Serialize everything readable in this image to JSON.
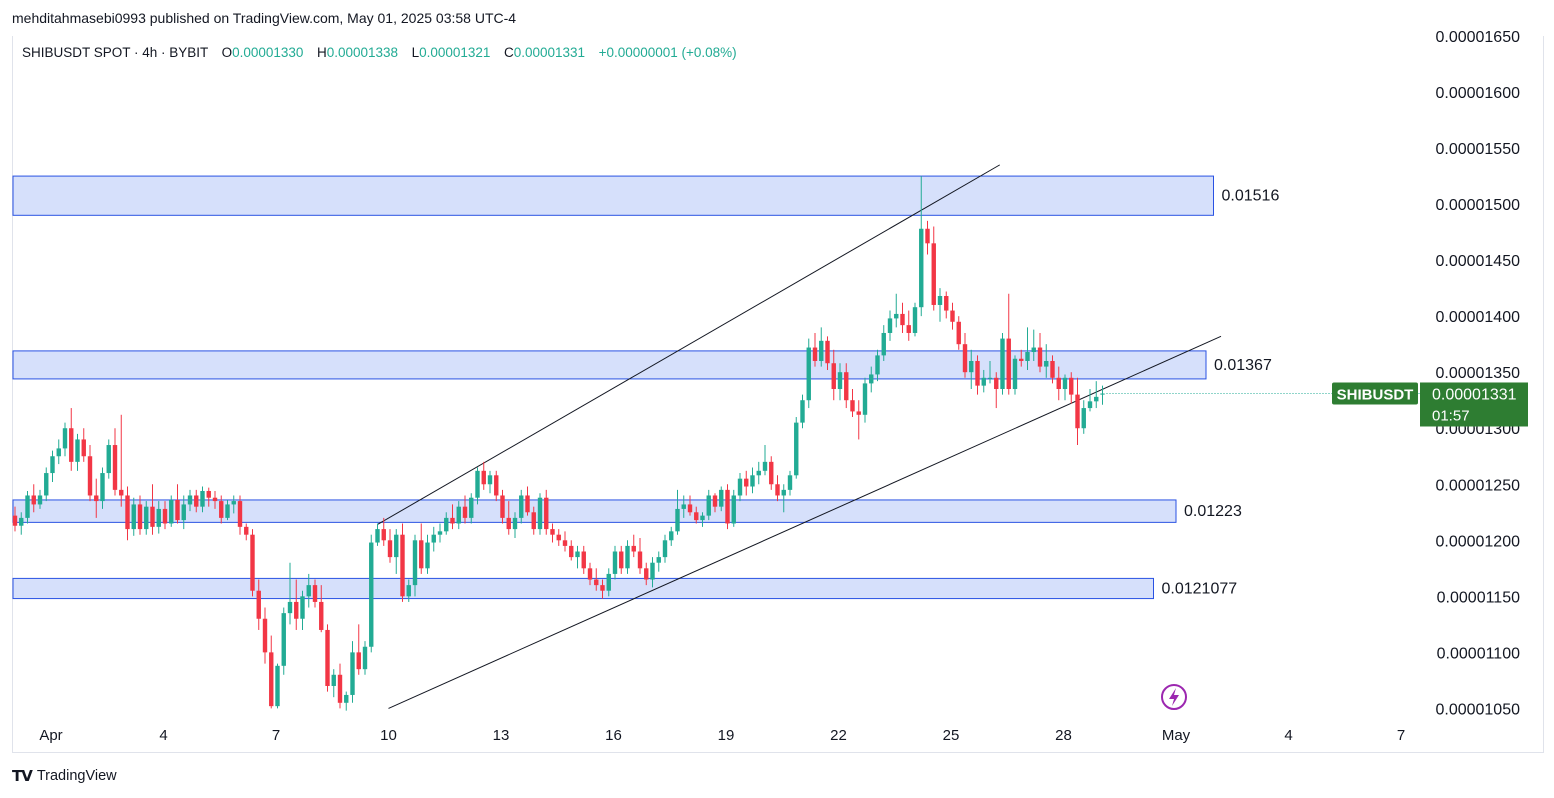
{
  "header": {
    "publisher_line": "mehditahmasebi0993 published on TradingView.com, May 01, 2025 03:58 UTC-4"
  },
  "legend": {
    "symbol": "SHIBUSDT SPOT · 4h · BYBIT",
    "open_label": "O",
    "open": "0.00001330",
    "high_label": "H",
    "high": "0.00001338",
    "low_label": "L",
    "low": "0.00001321",
    "close_label": "C",
    "close": "0.00001331",
    "change": "+0.00000001 (+0.08%)"
  },
  "price_tag": {
    "symbol": "SHIBUSDT",
    "price": "0.00001331",
    "countdown": "01:57"
  },
  "footer": {
    "brand": "TradingView"
  },
  "colors": {
    "up": "#22ab94",
    "down": "#f23645",
    "zone_fill": "#d6e0fb",
    "zone_border": "#2952e3",
    "tag": "#2e7d32"
  },
  "chart_data": {
    "type": "candlestick",
    "y_axis_side": "right",
    "ylim": [
      1.045e-05,
      1.65e-05
    ],
    "y_ticks": [
      "0.00001650",
      "0.00001600",
      "0.00001550",
      "0.00001500",
      "0.00001450",
      "0.00001400",
      "0.00001350",
      "0.00001300",
      "0.00001250",
      "0.00001200",
      "0.00001150",
      "0.00001100",
      "0.00001050"
    ],
    "y_tick_values": [
      1.65e-05,
      1.6e-05,
      1.55e-05,
      1.5e-05,
      1.45e-05,
      1.4e-05,
      1.35e-05,
      1.3e-05,
      1.25e-05,
      1.2e-05,
      1.15e-05,
      1.1e-05,
      1.05e-05
    ],
    "x_ticks": [
      {
        "label": "Apr",
        "day": 1
      },
      {
        "label": "4",
        "day": 4
      },
      {
        "label": "7",
        "day": 7
      },
      {
        "label": "10",
        "day": 10
      },
      {
        "label": "13",
        "day": 13
      },
      {
        "label": "16",
        "day": 16
      },
      {
        "label": "19",
        "day": 19
      },
      {
        "label": "22",
        "day": 22
      },
      {
        "label": "25",
        "day": 25
      },
      {
        "label": "28",
        "day": 28
      },
      {
        "label": "May",
        "day": 31
      },
      {
        "label": "4",
        "day": 34
      },
      {
        "label": "7",
        "day": 37
      }
    ],
    "zones": [
      {
        "label": "0.01516",
        "from_day": 0.0,
        "to_day": 32.0,
        "low": 1.49e-05,
        "high": 1.525e-05
      },
      {
        "label": "0.01367",
        "from_day": 0.0,
        "to_day": 31.8,
        "low": 1.344e-05,
        "high": 1.369e-05
      },
      {
        "label": "0.01223",
        "from_day": 0.0,
        "to_day": 31.0,
        "low": 1.216e-05,
        "high": 1.236e-05
      },
      {
        "label": "0.0121077",
        "from_day": 0.0,
        "to_day": 30.4,
        "low": 1.148e-05,
        "high": 1.166e-05
      }
    ],
    "trendlines": [
      {
        "from": {
          "day": 9.7,
          "price": 1.214e-05
        },
        "to": {
          "day": 26.3,
          "price": 1.535e-05
        }
      },
      {
        "from": {
          "day": 10.0,
          "price": 1.05e-05
        },
        "to": {
          "day": 32.2,
          "price": 1.382e-05
        }
      }
    ],
    "last_price": 1.331e-05,
    "candles": [
      [
        1.222e-05,
        1.23e-05,
        1.208e-05,
        1.213e-05
      ],
      [
        1.213e-05,
        1.225e-05,
        1.205e-05,
        1.22e-05
      ],
      [
        1.22e-05,
        1.244e-05,
        1.215e-05,
        1.24e-05
      ],
      [
        1.24e-05,
        1.25e-05,
        1.225e-05,
        1.232e-05
      ],
      [
        1.232e-05,
        1.245e-05,
        1.228e-05,
        1.24e-05
      ],
      [
        1.24e-05,
        1.265e-05,
        1.235e-05,
        1.26e-05
      ],
      [
        1.26e-05,
        1.28e-05,
        1.252e-05,
        1.275e-05
      ],
      [
        1.275e-05,
        1.29e-05,
        1.268e-05,
        1.282e-05
      ],
      [
        1.282e-05,
        1.305e-05,
        1.275e-05,
        1.3e-05
      ],
      [
        1.3e-05,
        1.318e-05,
        1.262e-05,
        1.27e-05
      ],
      [
        1.27e-05,
        1.295e-05,
        1.262e-05,
        1.29e-05
      ],
      [
        1.29e-05,
        1.3e-05,
        1.27e-05,
        1.275e-05
      ],
      [
        1.275e-05,
        1.285e-05,
        1.235e-05,
        1.24e-05
      ],
      [
        1.24e-05,
        1.255e-05,
        1.22e-05,
        1.235e-05
      ],
      [
        1.235e-05,
        1.265e-05,
        1.228e-05,
        1.26e-05
      ],
      [
        1.26e-05,
        1.29e-05,
        1.255e-05,
        1.285e-05
      ],
      [
        1.285e-05,
        1.3e-05,
        1.24e-05,
        1.245e-05
      ],
      [
        1.245e-05,
        1.312e-05,
        1.23e-05,
        1.24e-05
      ],
      [
        1.24e-05,
        1.248e-05,
        1.2e-05,
        1.21e-05
      ],
      [
        1.21e-05,
        1.238e-05,
        1.204e-05,
        1.232e-05
      ],
      [
        1.232e-05,
        1.24e-05,
        1.205e-05,
        1.21e-05
      ],
      [
        1.21e-05,
        1.235e-05,
        1.205e-05,
        1.23e-05
      ],
      [
        1.23e-05,
        1.25e-05,
        1.205e-05,
        1.212e-05
      ],
      [
        1.212e-05,
        1.235e-05,
        1.206e-05,
        1.228e-05
      ],
      [
        1.228e-05,
        1.235e-05,
        1.21e-05,
        1.215e-05
      ],
      [
        1.215e-05,
        1.24e-05,
        1.212e-05,
        1.236e-05
      ],
      [
        1.236e-05,
        1.25e-05,
        1.215e-05,
        1.218e-05
      ],
      [
        1.218e-05,
        1.24e-05,
        1.21e-05,
        1.232e-05
      ],
      [
        1.232e-05,
        1.245e-05,
        1.226e-05,
        1.24e-05
      ],
      [
        1.24e-05,
        1.245e-05,
        1.225e-05,
        1.23e-05
      ],
      [
        1.23e-05,
        1.248e-05,
        1.225e-05,
        1.244e-05
      ],
      [
        1.244e-05,
        1.247e-05,
        1.23e-05,
        1.238e-05
      ],
      [
        1.238e-05,
        1.244e-05,
        1.228e-05,
        1.235e-05
      ],
      [
        1.235e-05,
        1.24e-05,
        1.215e-05,
        1.22e-05
      ],
      [
        1.22e-05,
        1.236e-05,
        1.218e-05,
        1.232e-05
      ],
      [
        1.232e-05,
        1.24e-05,
        1.224e-05,
        1.235e-05
      ],
      [
        1.235e-05,
        1.24e-05,
        1.205e-05,
        1.212e-05
      ],
      [
        1.212e-05,
        1.215e-05,
        1.2e-05,
        1.205e-05
      ],
      [
        1.205e-05,
        1.21e-05,
        1.15e-05,
        1.155e-05
      ],
      [
        1.155e-05,
        1.165e-05,
        1.12e-05,
        1.13e-05
      ],
      [
        1.13e-05,
        1.14e-05,
        1.09e-05,
        1.1e-05
      ],
      [
        1.1e-05,
        1.115e-05,
        1.05e-05,
        1.052e-05
      ],
      [
        1.052e-05,
        1.09e-05,
        1.05e-05,
        1.088e-05
      ],
      [
        1.088e-05,
        1.14e-05,
        1.08e-05,
        1.135e-05
      ],
      [
        1.135e-05,
        1.18e-05,
        1.125e-05,
        1.145e-05
      ],
      [
        1.145e-05,
        1.165e-05,
        1.12e-05,
        1.13e-05
      ],
      [
        1.13e-05,
        1.155e-05,
        1.12e-05,
        1.15e-05
      ],
      [
        1.15e-05,
        1.17e-05,
        1.14e-05,
        1.16e-05
      ],
      [
        1.16e-05,
        1.165e-05,
        1.14e-05,
        1.145e-05
      ],
      [
        1.145e-05,
        1.16e-05,
        1.118e-05,
        1.12e-05
      ],
      [
        1.12e-05,
        1.125e-05,
        1.065e-05,
        1.07e-05
      ],
      [
        1.07e-05,
        1.085e-05,
        1.06e-05,
        1.08e-05
      ],
      [
        1.08e-05,
        1.09e-05,
        1.05e-05,
        1.055e-05
      ],
      [
        1.055e-05,
        1.065e-05,
        1.048e-05,
        1.062e-05
      ],
      [
        1.062e-05,
        1.11e-05,
        1.055e-05,
        1.1e-05
      ],
      [
        1.1e-05,
        1.125e-05,
        1.08e-05,
        1.085e-05
      ],
      [
        1.085e-05,
        1.11e-05,
        1.08e-05,
        1.105e-05
      ],
      [
        1.105e-05,
        1.205e-05,
        1.1e-05,
        1.198e-05
      ],
      [
        1.198e-05,
        1.215e-05,
        1.195e-05,
        1.21e-05
      ],
      [
        1.21e-05,
        1.22e-05,
        1.195e-05,
        1.2e-05
      ],
      [
        1.2e-05,
        1.21e-05,
        1.18e-05,
        1.185e-05
      ],
      [
        1.185e-05,
        1.21e-05,
        1.17e-05,
        1.205e-05
      ],
      [
        1.205e-05,
        1.215e-05,
        1.145e-05,
        1.15e-05
      ],
      [
        1.15e-05,
        1.165e-05,
        1.145e-05,
        1.16e-05
      ],
      [
        1.16e-05,
        1.205e-05,
        1.15e-05,
        1.2e-05
      ],
      [
        1.2e-05,
        1.215e-05,
        1.17e-05,
        1.175e-05
      ],
      [
        1.175e-05,
        1.205e-05,
        1.17e-05,
        1.198e-05
      ],
      [
        1.198e-05,
        1.212e-05,
        1.19e-05,
        1.205e-05
      ],
      [
        1.205e-05,
        1.215e-05,
        1.198e-05,
        1.208e-05
      ],
      [
        1.208e-05,
        1.225e-05,
        1.205e-05,
        1.22e-05
      ],
      [
        1.22e-05,
        1.232e-05,
        1.21e-05,
        1.215e-05
      ],
      [
        1.215e-05,
        1.235e-05,
        1.21e-05,
        1.23e-05
      ],
      [
        1.23e-05,
        1.24e-05,
        1.215e-05,
        1.22e-05
      ],
      [
        1.22e-05,
        1.242e-05,
        1.215e-05,
        1.238e-05
      ],
      [
        1.238e-05,
        1.265e-05,
        1.232e-05,
        1.262e-05
      ],
      [
        1.262e-05,
        1.27e-05,
        1.245e-05,
        1.25e-05
      ],
      [
        1.25e-05,
        1.262e-05,
        1.242e-05,
        1.258e-05
      ],
      [
        1.258e-05,
        1.262e-05,
        1.235e-05,
        1.24e-05
      ],
      [
        1.24e-05,
        1.245e-05,
        1.215e-05,
        1.22e-05
      ],
      [
        1.22e-05,
        1.235e-05,
        1.205e-05,
        1.21e-05
      ],
      [
        1.21e-05,
        1.225e-05,
        1.202e-05,
        1.22e-05
      ],
      [
        1.22e-05,
        1.245e-05,
        1.215e-05,
        1.24e-05
      ],
      [
        1.24e-05,
        1.248e-05,
        1.222e-05,
        1.225e-05
      ],
      [
        1.225e-05,
        1.23e-05,
        1.205e-05,
        1.21e-05
      ],
      [
        1.21e-05,
        1.242e-05,
        1.205e-05,
        1.238e-05
      ],
      [
        1.238e-05,
        1.245e-05,
        1.205e-05,
        1.21e-05
      ],
      [
        1.21e-05,
        1.215e-05,
        1.198e-05,
        1.205e-05
      ],
      [
        1.205e-05,
        1.21e-05,
        1.195e-05,
        1.2e-05
      ],
      [
        1.2e-05,
        1.208e-05,
        1.19e-05,
        1.195e-05
      ],
      [
        1.195e-05,
        1.2e-05,
        1.182e-05,
        1.185e-05
      ],
      [
        1.185e-05,
        1.195e-05,
        1.175e-05,
        1.19e-05
      ],
      [
        1.19e-05,
        1.195e-05,
        1.17e-05,
        1.175e-05
      ],
      [
        1.175e-05,
        1.18e-05,
        1.16e-05,
        1.165e-05
      ],
      [
        1.165e-05,
        1.175e-05,
        1.155e-05,
        1.16e-05
      ],
      [
        1.16e-05,
        1.165e-05,
        1.148e-05,
        1.155e-05
      ],
      [
        1.155e-05,
        1.175e-05,
        1.15e-05,
        1.17e-05
      ],
      [
        1.17e-05,
        1.195e-05,
        1.165e-05,
        1.19e-05
      ],
      [
        1.19e-05,
        1.195e-05,
        1.17e-05,
        1.175e-05
      ],
      [
        1.175e-05,
        1.2e-05,
        1.17e-05,
        1.195e-05
      ],
      [
        1.195e-05,
        1.205e-05,
        1.185e-05,
        1.19e-05
      ],
      [
        1.19e-05,
        1.202e-05,
        1.17e-05,
        1.175e-05
      ],
      [
        1.175e-05,
        1.18e-05,
        1.16e-05,
        1.165e-05
      ],
      [
        1.165e-05,
        1.185e-05,
        1.158e-05,
        1.18e-05
      ],
      [
        1.18e-05,
        1.19e-05,
        1.172e-05,
        1.185e-05
      ],
      [
        1.185e-05,
        1.205e-05,
        1.18e-05,
        1.2e-05
      ],
      [
        1.2e-05,
        1.212e-05,
        1.195e-05,
        1.208e-05
      ],
      [
        1.208e-05,
        1.245e-05,
        1.205e-05,
        1.228e-05
      ],
      [
        1.228e-05,
        1.24e-05,
        1.22e-05,
        1.232e-05
      ],
      [
        1.232e-05,
        1.24e-05,
        1.222e-05,
        1.225e-05
      ],
      [
        1.225e-05,
        1.23e-05,
        1.215e-05,
        1.218e-05
      ],
      [
        1.218e-05,
        1.225e-05,
        1.212e-05,
        1.222e-05
      ],
      [
        1.222e-05,
        1.245e-05,
        1.218e-05,
        1.24e-05
      ],
      [
        1.24e-05,
        1.242e-05,
        1.225e-05,
        1.23e-05
      ],
      [
        1.23e-05,
        1.248e-05,
        1.226e-05,
        1.245e-05
      ],
      [
        1.245e-05,
        1.25e-05,
        1.21e-05,
        1.215e-05
      ],
      [
        1.215e-05,
        1.245e-05,
        1.212e-05,
        1.24e-05
      ],
      [
        1.24e-05,
        1.26e-05,
        1.235e-05,
        1.255e-05
      ],
      [
        1.255e-05,
        1.262e-05,
        1.24e-05,
        1.248e-05
      ],
      [
        1.248e-05,
        1.265e-05,
        1.242e-05,
        1.258e-05
      ],
      [
        1.258e-05,
        1.27e-05,
        1.25e-05,
        1.262e-05
      ],
      [
        1.262e-05,
        1.285e-05,
        1.258e-05,
        1.27e-05
      ],
      [
        1.27e-05,
        1.275e-05,
        1.245e-05,
        1.25e-05
      ],
      [
        1.25e-05,
        1.258e-05,
        1.235e-05,
        1.24e-05
      ],
      [
        1.24e-05,
        1.25e-05,
        1.225e-05,
        1.245e-05
      ],
      [
        1.245e-05,
        1.262e-05,
        1.24e-05,
        1.258e-05
      ],
      [
        1.258e-05,
        1.31e-05,
        1.255e-05,
        1.305e-05
      ],
      [
        1.305e-05,
        1.33e-05,
        1.3e-05,
        1.325e-05
      ],
      [
        1.325e-05,
        1.38e-05,
        1.318e-05,
        1.372e-05
      ],
      [
        1.372e-05,
        1.385e-05,
        1.355e-05,
        1.36e-05
      ],
      [
        1.36e-05,
        1.39e-05,
        1.355e-05,
        1.378e-05
      ],
      [
        1.378e-05,
        1.382e-05,
        1.352e-05,
        1.358e-05
      ],
      [
        1.358e-05,
        1.37e-05,
        1.325e-05,
        1.335e-05
      ],
      [
        1.335e-05,
        1.358e-05,
        1.325e-05,
        1.35e-05
      ],
      [
        1.35e-05,
        1.358e-05,
        1.318e-05,
        1.325e-05
      ],
      [
        1.325e-05,
        1.335e-05,
        1.31e-05,
        1.315e-05
      ],
      [
        1.315e-05,
        1.325e-05,
        1.29e-05,
        1.312e-05
      ],
      [
        1.312e-05,
        1.345e-05,
        1.305e-05,
        1.34e-05
      ],
      [
        1.34e-05,
        1.355e-05,
        1.332e-05,
        1.348e-05
      ],
      [
        1.348e-05,
        1.37e-05,
        1.342e-05,
        1.365e-05
      ],
      [
        1.365e-05,
        1.392e-05,
        1.36e-05,
        1.385e-05
      ],
      [
        1.385e-05,
        1.405e-05,
        1.378e-05,
        1.398e-05
      ],
      [
        1.398e-05,
        1.42e-05,
        1.39e-05,
        1.402e-05
      ],
      [
        1.402e-05,
        1.412e-05,
        1.385e-05,
        1.392e-05
      ],
      [
        1.392e-05,
        1.405e-05,
        1.378e-05,
        1.385e-05
      ],
      [
        1.385e-05,
        1.412e-05,
        1.382e-05,
        1.408e-05
      ],
      [
        1.408e-05,
        1.525e-05,
        1.4e-05,
        1.478e-05
      ],
      [
        1.478e-05,
        1.485e-05,
        1.455e-05,
        1.465e-05
      ],
      [
        1.465e-05,
        1.48e-05,
        1.405e-05,
        1.41e-05
      ],
      [
        1.41e-05,
        1.425e-05,
        1.395e-05,
        1.418e-05
      ],
      [
        1.418e-05,
        1.422e-05,
        1.398e-05,
        1.405e-05
      ],
      [
        1.405e-05,
        1.412e-05,
        1.388e-05,
        1.395e-05
      ],
      [
        1.395e-05,
        1.4e-05,
        1.37e-05,
        1.375e-05
      ],
      [
        1.375e-05,
        1.385e-05,
        1.345e-05,
        1.35e-05
      ],
      [
        1.35e-05,
        1.37e-05,
        1.335e-05,
        1.36e-05
      ],
      [
        1.36e-05,
        1.365e-05,
        1.33e-05,
        1.338e-05
      ],
      [
        1.338e-05,
        1.352e-05,
        1.332e-05,
        1.345e-05
      ],
      [
        1.345e-05,
        1.36e-05,
        1.34e-05,
        1.345e-05
      ],
      [
        1.345e-05,
        1.35e-05,
        1.318e-05,
        1.335e-05
      ],
      [
        1.335e-05,
        1.385e-05,
        1.33e-05,
        1.38e-05
      ],
      [
        1.38e-05,
        1.42e-05,
        1.33e-05,
        1.335e-05
      ],
      [
        1.335e-05,
        1.365e-05,
        1.33e-05,
        1.362e-05
      ],
      [
        1.362e-05,
        1.37e-05,
        1.355e-05,
        1.36e-05
      ],
      [
        1.36e-05,
        1.39e-05,
        1.352e-05,
        1.368e-05
      ],
      [
        1.368e-05,
        1.388e-05,
        1.36e-05,
        1.372e-05
      ],
      [
        1.372e-05,
        1.385e-05,
        1.35e-05,
        1.355e-05
      ],
      [
        1.355e-05,
        1.375e-05,
        1.345e-05,
        1.36e-05
      ],
      [
        1.36e-05,
        1.365e-05,
        1.34e-05,
        1.345e-05
      ],
      [
        1.345e-05,
        1.355e-05,
        1.325e-05,
        1.335e-05
      ],
      [
        1.335e-05,
        1.348e-05,
        1.325e-05,
        1.345e-05
      ],
      [
        1.345e-05,
        1.35e-05,
        1.322e-05,
        1.33e-05
      ],
      [
        1.33e-05,
        1.345e-05,
        1.285e-05,
        1.3e-05
      ],
      [
        1.3e-05,
        1.325e-05,
        1.295e-05,
        1.318e-05
      ],
      [
        1.318e-05,
        1.335e-05,
        1.315e-05,
        1.324e-05
      ],
      [
        1.324e-05,
        1.342e-05,
        1.318e-05,
        1.328e-05
      ],
      [
        1.33e-05,
        1.338e-05,
        1.321e-05,
        1.331e-05
      ]
    ],
    "candle_interval_hours": 4
  }
}
